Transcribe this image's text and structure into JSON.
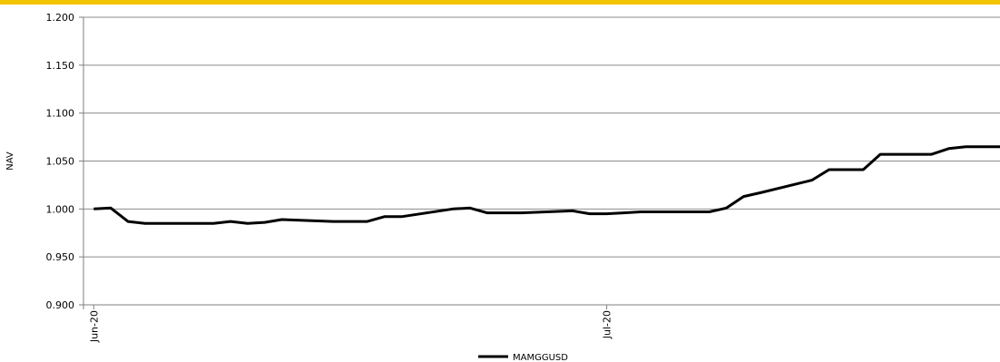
{
  "chart_data": {
    "type": "line",
    "title": "",
    "xlabel": "",
    "ylabel": "NAV",
    "ylim": [
      0.9,
      1.2
    ],
    "yticks": [
      "1.200",
      "1.150",
      "1.100",
      "1.050",
      "1.000",
      "0.950",
      "0.900"
    ],
    "xtick_labels": [
      "Jun-20",
      "Jul-20"
    ],
    "grid": "horizontal",
    "legend_position": "bottom-center",
    "accent_color": "#f5c400",
    "series": [
      {
        "name": "MAMGGUSD",
        "color": "#000000",
        "x": [
          "2020-06-01",
          "2020-06-02",
          "2020-06-03",
          "2020-06-04",
          "2020-06-05",
          "2020-06-08",
          "2020-06-09",
          "2020-06-10",
          "2020-06-11",
          "2020-06-12",
          "2020-06-15",
          "2020-06-16",
          "2020-06-17",
          "2020-06-18",
          "2020-06-19",
          "2020-06-22",
          "2020-06-23",
          "2020-06-24",
          "2020-06-25",
          "2020-06-26",
          "2020-06-29",
          "2020-06-30",
          "2020-07-01",
          "2020-07-02",
          "2020-07-03",
          "2020-07-06",
          "2020-07-07",
          "2020-07-08",
          "2020-07-09",
          "2020-07-10",
          "2020-07-13",
          "2020-07-14",
          "2020-07-15",
          "2020-07-16",
          "2020-07-17",
          "2020-07-20",
          "2020-07-21",
          "2020-07-22",
          "2020-07-23",
          "2020-07-24"
        ],
        "values": [
          1.0,
          1.001,
          0.987,
          0.985,
          0.985,
          0.985,
          0.987,
          0.985,
          0.986,
          0.989,
          0.987,
          0.987,
          0.987,
          0.992,
          0.992,
          1.0,
          1.001,
          0.996,
          0.996,
          0.996,
          0.998,
          0.995,
          0.995,
          0.996,
          0.997,
          0.997,
          0.997,
          1.001,
          1.013,
          1.017,
          1.03,
          1.041,
          1.041,
          1.041,
          1.057,
          1.057,
          1.063,
          1.065,
          1.065,
          1.065
        ]
      }
    ]
  }
}
